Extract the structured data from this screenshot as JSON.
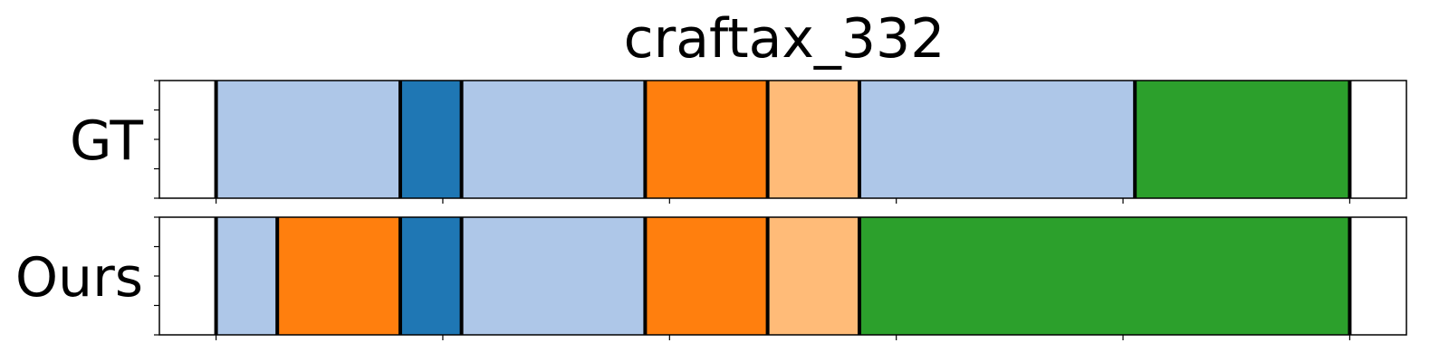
{
  "chart_data": {
    "type": "segmentation-timeline",
    "title": "craftax_332",
    "xlim": [
      0,
      22
    ],
    "x_ticks": [
      1,
      5,
      9,
      13,
      17,
      21
    ],
    "y_ticks_count": 5,
    "boundary_color": "#000000",
    "rows": [
      {
        "label": "GT",
        "segments": [
          {
            "start": 1.0,
            "end": 4.25,
            "color": "#aec7e8"
          },
          {
            "start": 4.25,
            "end": 5.33,
            "color": "#1f77b4"
          },
          {
            "start": 5.33,
            "end": 8.57,
            "color": "#aec7e8"
          },
          {
            "start": 8.57,
            "end": 10.73,
            "color": "#ff7f0e"
          },
          {
            "start": 10.73,
            "end": 12.35,
            "color": "#ffbb78"
          },
          {
            "start": 12.35,
            "end": 17.21,
            "color": "#aec7e8"
          },
          {
            "start": 17.21,
            "end": 21.0,
            "color": "#2ca02c"
          }
        ]
      },
      {
        "label": "Ours",
        "segments": [
          {
            "start": 1.0,
            "end": 2.08,
            "color": "#aec7e8"
          },
          {
            "start": 2.08,
            "end": 4.25,
            "color": "#ff7f0e"
          },
          {
            "start": 4.25,
            "end": 5.33,
            "color": "#1f77b4"
          },
          {
            "start": 5.33,
            "end": 8.57,
            "color": "#aec7e8"
          },
          {
            "start": 8.57,
            "end": 10.73,
            "color": "#ff7f0e"
          },
          {
            "start": 10.73,
            "end": 12.35,
            "color": "#ffbb78"
          },
          {
            "start": 12.35,
            "end": 21.0,
            "color": "#2ca02c"
          }
        ]
      }
    ]
  }
}
